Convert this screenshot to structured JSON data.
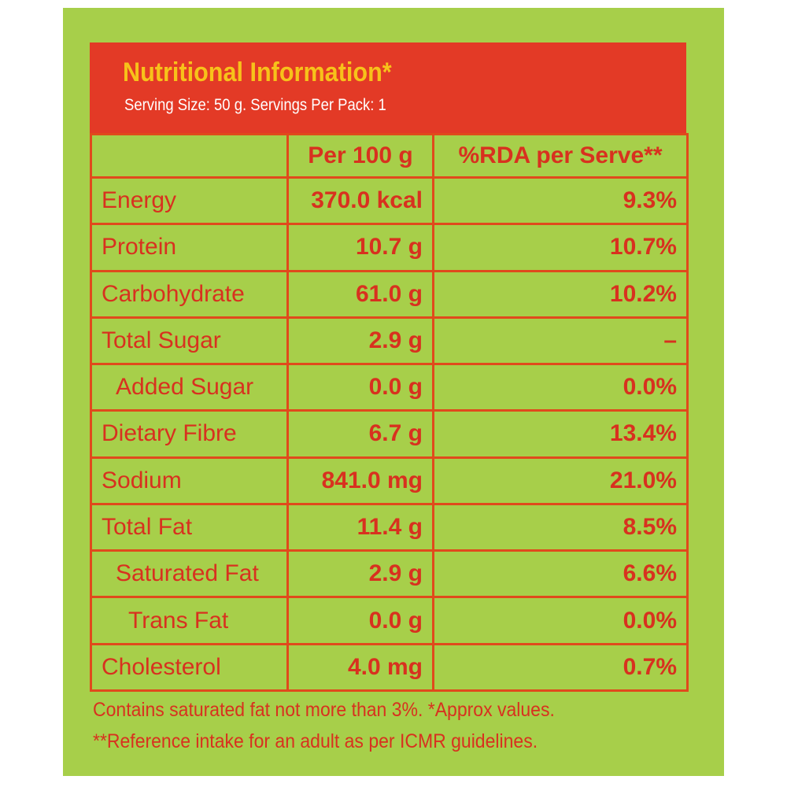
{
  "header": {
    "title": "Nutritional Information*",
    "serving": "Serving Size: 50 g. Servings Per Pack: 1"
  },
  "table": {
    "columns": [
      "",
      "Per 100 g",
      "%RDA per Serve**"
    ],
    "rows": [
      {
        "name": "Energy",
        "per100": "370.0 kcal",
        "rda": "9.3%"
      },
      {
        "name": "Protein",
        "per100": "10.7 g",
        "rda": "10.7%"
      },
      {
        "name": "Carbohydrate",
        "per100": "61.0 g",
        "rda": "10.2%"
      },
      {
        "name": "Total Sugar",
        "per100": "2.9 g",
        "rda": "–"
      },
      {
        "name": "Added Sugar",
        "per100": "0.0 g",
        "rda": "0.0%"
      },
      {
        "name": "Dietary Fibre",
        "per100": "6.7 g",
        "rda": "13.4%"
      },
      {
        "name": "Sodium",
        "per100": "841.0 mg",
        "rda": "21.0%"
      },
      {
        "name": "Total Fat",
        "per100": "11.4 g",
        "rda": "8.5%"
      },
      {
        "name": "Saturated Fat",
        "per100": "2.9 g",
        "rda": "6.6%"
      },
      {
        "name": "Trans Fat",
        "per100": "0.0 g",
        "rda": "0.0%"
      },
      {
        "name": "Cholesterol",
        "per100": "4.0 mg",
        "rda": "0.7%"
      }
    ]
  },
  "footnotes": [
    "Contains saturated fat not more than 3%. *Approx values.",
    "**Reference intake for an adult as per ICMR guidelines."
  ],
  "colors": {
    "background": "#a7cf4a",
    "header_bg": "#e33a26",
    "title": "#f7c21a",
    "text": "#d8311f"
  }
}
